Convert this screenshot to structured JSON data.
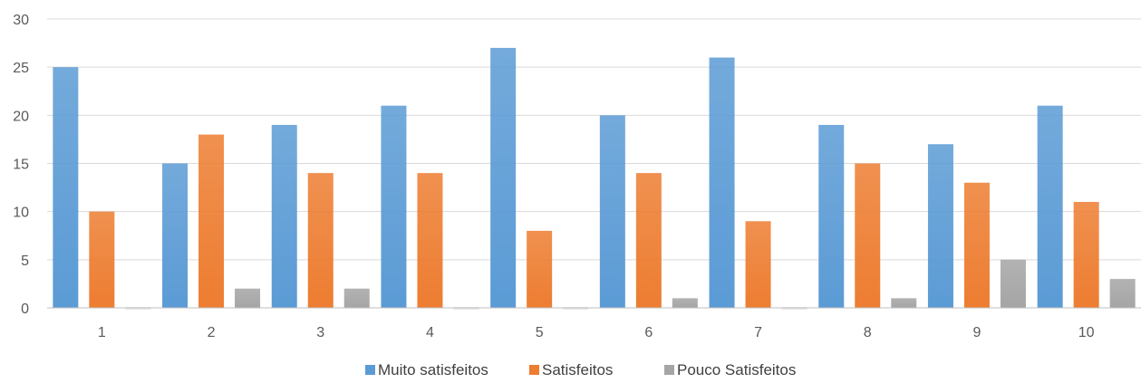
{
  "chart_data": {
    "type": "bar",
    "title": "",
    "xlabel": "",
    "ylabel": "",
    "categories": [
      "1",
      "2",
      "3",
      "4",
      "5",
      "6",
      "7",
      "8",
      "9",
      "10"
    ],
    "ylim": [
      0,
      30
    ],
    "yticks": [
      0,
      5,
      10,
      15,
      20,
      25,
      30
    ],
    "grid": true,
    "legend_position": "bottom",
    "series": [
      {
        "name": "Muito satisfeitos",
        "color": "#5b9bd5",
        "values": [
          25,
          15,
          19,
          21,
          27,
          20,
          26,
          19,
          17,
          21
        ]
      },
      {
        "name": "Satisfeitos",
        "color": "#ed7d31",
        "values": [
          10,
          18,
          14,
          14,
          8,
          14,
          9,
          15,
          13,
          11
        ]
      },
      {
        "name": "Pouco Satisfeitos",
        "color": "#a5a5a5",
        "values": [
          0,
          2,
          2,
          0,
          0,
          1,
          0,
          1,
          5,
          3
        ]
      }
    ]
  }
}
